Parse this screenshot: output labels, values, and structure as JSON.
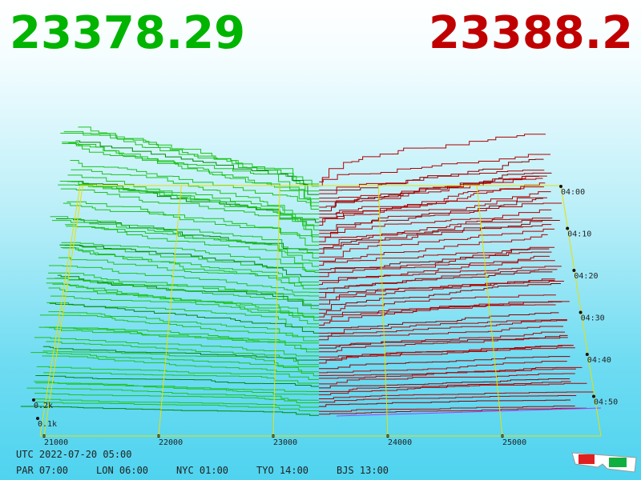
{
  "bid_price": "23378.29",
  "ask_price": "23388.2",
  "price_axis": [
    "21000",
    "22000",
    "23000",
    "24000",
    "25000"
  ],
  "time_axis": [
    "04:00",
    "04:10",
    "04:20",
    "04:30",
    "04:40",
    "04:50"
  ],
  "size_axis": [
    "0.2k",
    "0.1k"
  ],
  "footer": {
    "utc": "UTC 2022-07-20 05:00",
    "city_times": [
      "PAR 07:00",
      "LON 06:00",
      "NYC 01:00",
      "TYO 14:00",
      "BJS 13:00"
    ]
  }
}
